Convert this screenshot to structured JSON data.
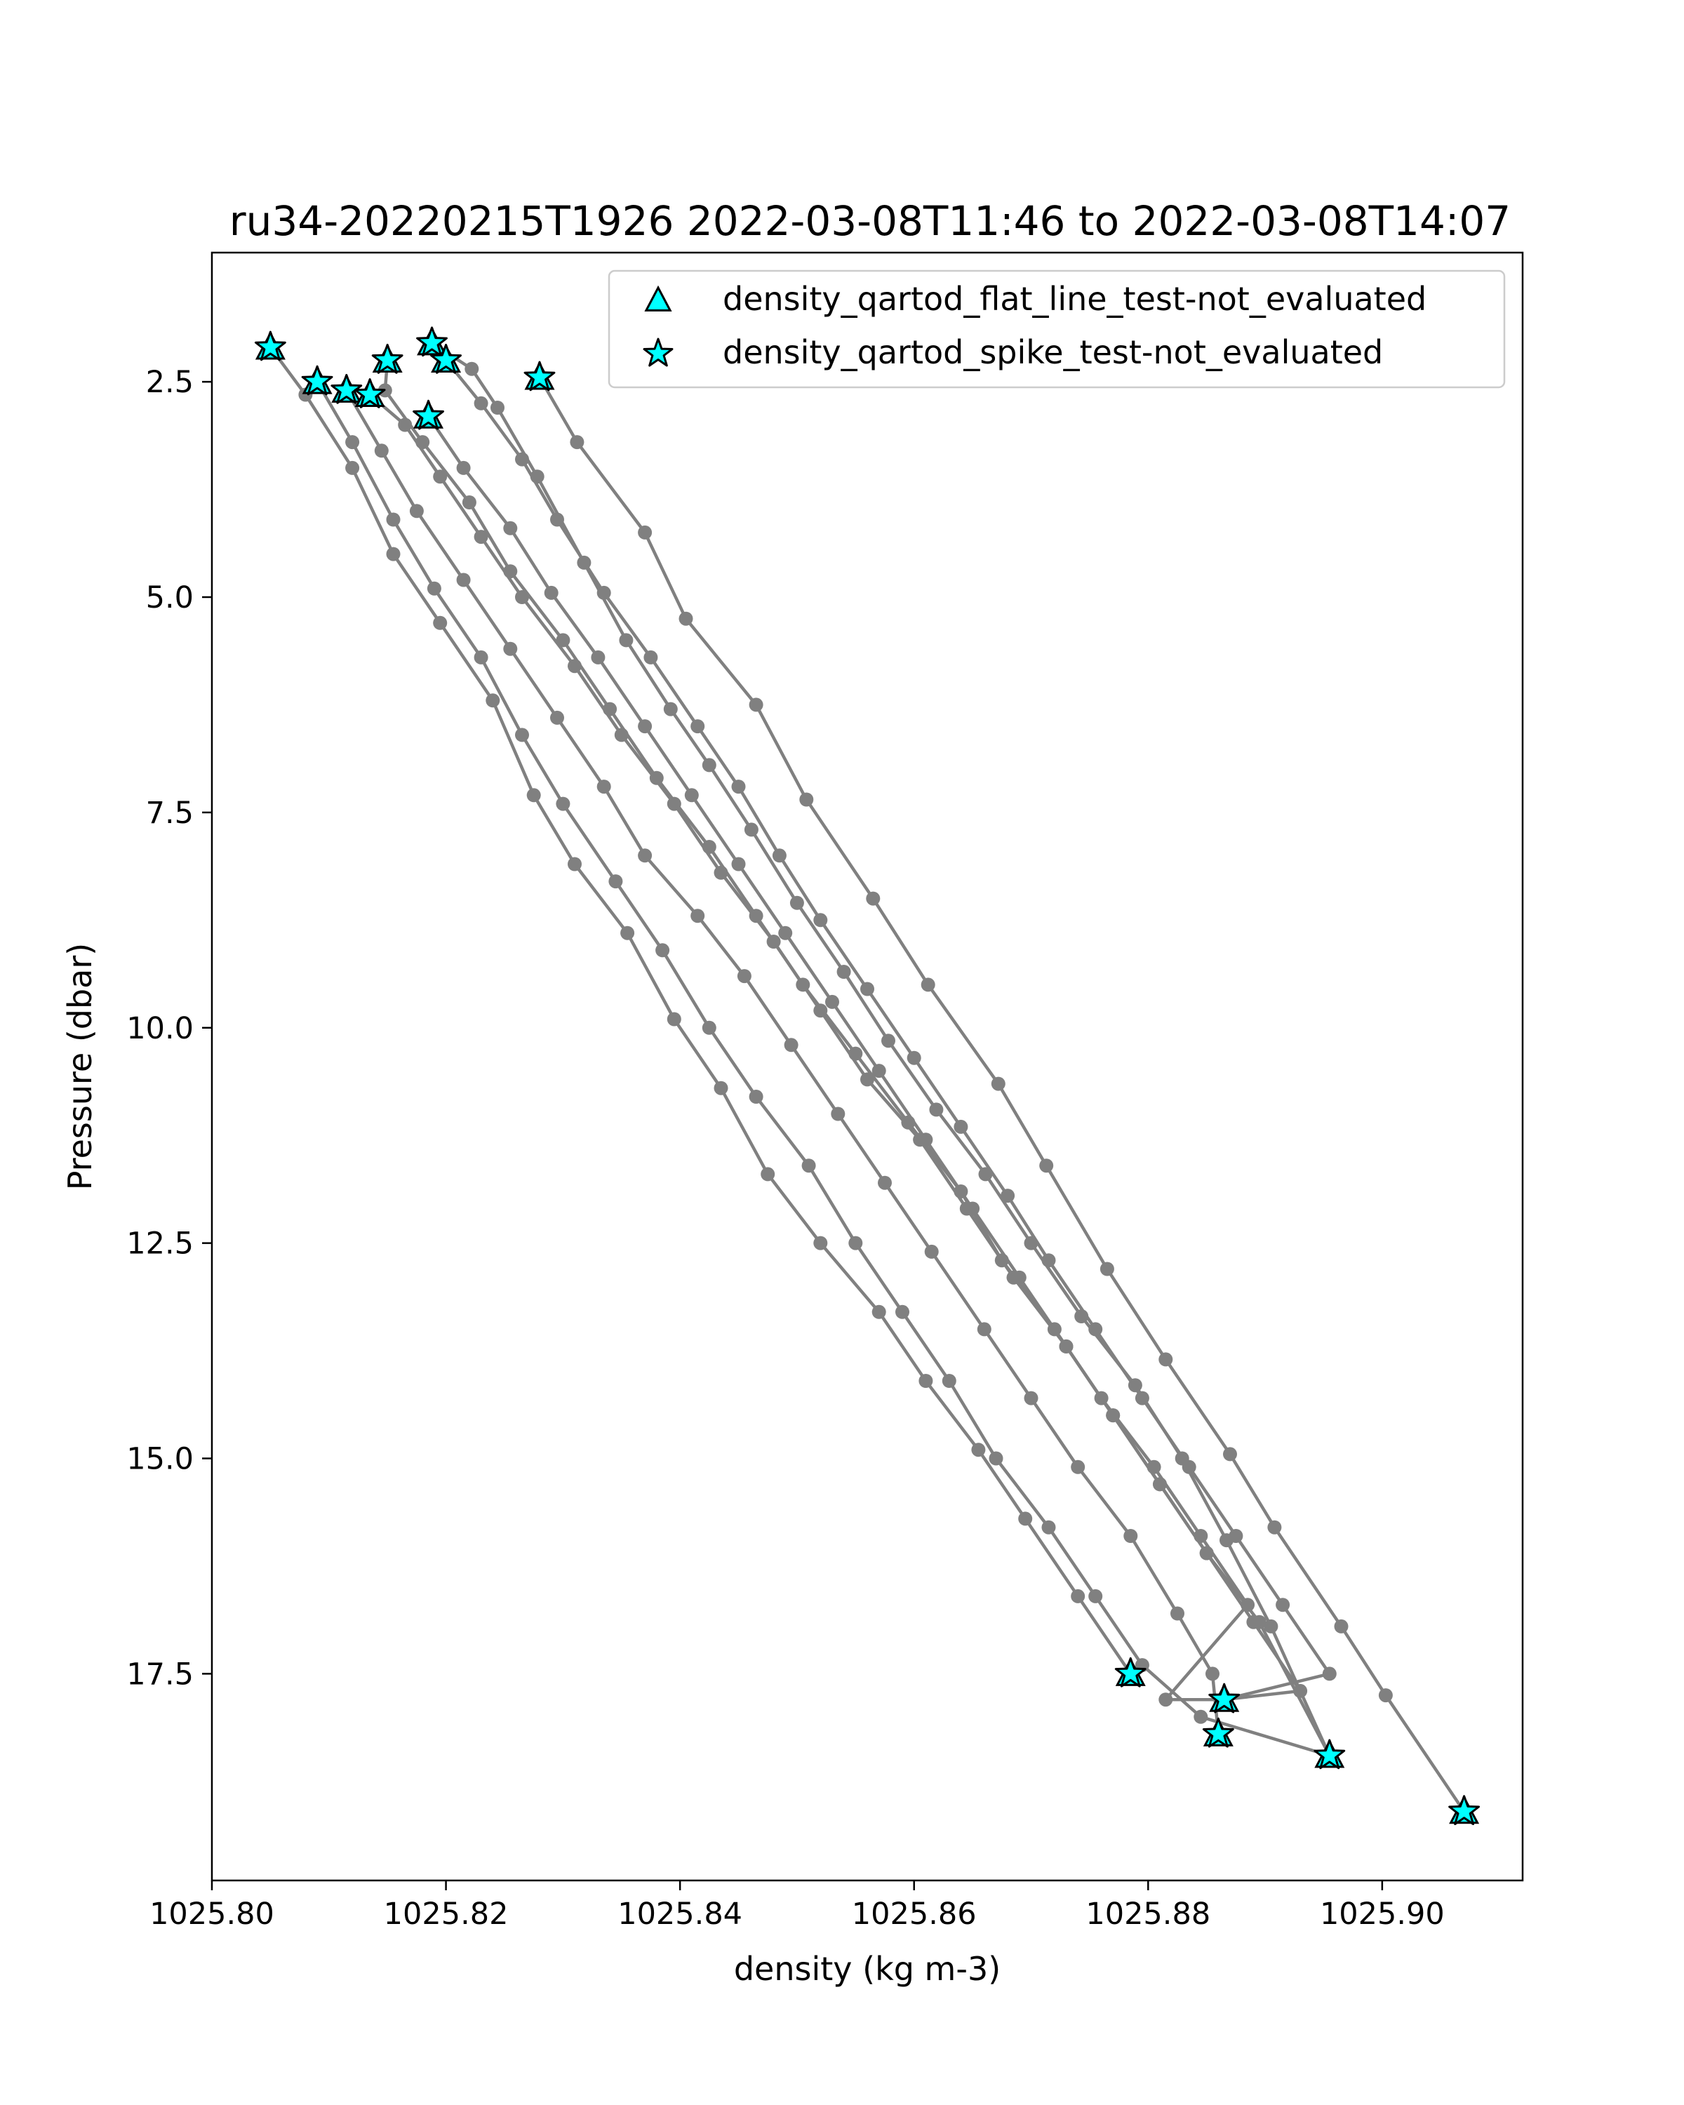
{
  "chart_data": {
    "type": "line",
    "title": "ru34-20220215T1926 2022-03-08T11:46 to 2022-03-08T14:07",
    "xlabel": "density (kg m-3)",
    "ylabel": "Pressure (dbar)",
    "xlim": [
      1025.8,
      1025.912
    ],
    "ylim": [
      19.9,
      1.0
    ],
    "y_inverted": true,
    "grid": false,
    "xticks": [
      {
        "value": 1025.8,
        "label": "1025.80"
      },
      {
        "value": 1025.82,
        "label": "1025.82"
      },
      {
        "value": 1025.84,
        "label": "1025.84"
      },
      {
        "value": 1025.86,
        "label": "1025.86"
      },
      {
        "value": 1025.88,
        "label": "1025.88"
      },
      {
        "value": 1025.9,
        "label": "1025.90"
      }
    ],
    "yticks": [
      {
        "value": 2.5,
        "label": "2.5"
      },
      {
        "value": 5.0,
        "label": "5.0"
      },
      {
        "value": 7.5,
        "label": "7.5"
      },
      {
        "value": 10.0,
        "label": "10.0"
      },
      {
        "value": 12.5,
        "label": "12.5"
      },
      {
        "value": 15.0,
        "label": "15.0"
      },
      {
        "value": 17.5,
        "label": "17.5"
      }
    ],
    "legend": {
      "placement": "top-right",
      "entries": [
        {
          "label": "density_qartod_flat_line_test-not_evaluated",
          "marker": "triangle",
          "color": "#00ffff"
        },
        {
          "label": "density_qartod_spike_test-not_evaluated",
          "marker": "star",
          "color": "#00ffff"
        }
      ]
    },
    "line_color": "#808080",
    "flag_color": "#00ffff",
    "series": [
      {
        "points": [
          [
            1025.805,
            2.1
          ],
          [
            1025.808,
            2.65
          ],
          [
            1025.812,
            3.5
          ],
          [
            1025.8155,
            4.5
          ],
          [
            1025.8195,
            5.3
          ],
          [
            1025.824,
            6.2
          ],
          [
            1025.8275,
            7.3
          ],
          [
            1025.831,
            8.1
          ],
          [
            1025.8355,
            8.9
          ],
          [
            1025.8395,
            9.9
          ],
          [
            1025.8435,
            10.7
          ],
          [
            1025.8475,
            11.7
          ],
          [
            1025.852,
            12.5
          ],
          [
            1025.857,
            13.3
          ],
          [
            1025.861,
            14.1
          ],
          [
            1025.8655,
            14.9
          ],
          [
            1025.8695,
            15.7
          ],
          [
            1025.874,
            16.6
          ],
          [
            1025.8785,
            17.5
          ]
        ]
      },
      {
        "points": [
          [
            1025.809,
            2.5
          ],
          [
            1025.812,
            3.2
          ],
          [
            1025.8155,
            4.1
          ],
          [
            1025.819,
            4.9
          ],
          [
            1025.823,
            5.7
          ],
          [
            1025.8265,
            6.6
          ],
          [
            1025.83,
            7.4
          ],
          [
            1025.8345,
            8.3
          ],
          [
            1025.8385,
            9.1
          ],
          [
            1025.8425,
            10.0
          ],
          [
            1025.8465,
            10.8
          ],
          [
            1025.851,
            11.6
          ],
          [
            1025.855,
            12.5
          ],
          [
            1025.859,
            13.3
          ],
          [
            1025.863,
            14.1
          ],
          [
            1025.867,
            15.0
          ],
          [
            1025.8715,
            15.8
          ],
          [
            1025.8755,
            16.6
          ],
          [
            1025.8795,
            17.4
          ],
          [
            1025.8845,
            18.0
          ],
          [
            1025.8955,
            18.45
          ]
        ]
      },
      {
        "points": [
          [
            1025.8115,
            2.6
          ],
          [
            1025.8145,
            3.3
          ],
          [
            1025.8175,
            4.0
          ],
          [
            1025.8215,
            4.8
          ],
          [
            1025.8255,
            5.6
          ],
          [
            1025.8295,
            6.4
          ],
          [
            1025.8335,
            7.2
          ],
          [
            1025.837,
            8.0
          ],
          [
            1025.8415,
            8.7
          ],
          [
            1025.8455,
            9.4
          ],
          [
            1025.8495,
            10.2
          ],
          [
            1025.8535,
            11.0
          ],
          [
            1025.8575,
            11.8
          ],
          [
            1025.8615,
            12.6
          ],
          [
            1025.866,
            13.5
          ],
          [
            1025.87,
            14.3
          ],
          [
            1025.874,
            15.1
          ],
          [
            1025.8785,
            15.9
          ],
          [
            1025.8825,
            16.8
          ],
          [
            1025.8855,
            17.5
          ],
          [
            1025.886,
            18.2
          ]
        ]
      },
      {
        "points": [
          [
            1025.8135,
            2.65
          ],
          [
            1025.8165,
            3.0
          ],
          [
            1025.8195,
            3.6
          ],
          [
            1025.823,
            4.3
          ],
          [
            1025.8265,
            5.0
          ],
          [
            1025.831,
            5.8
          ],
          [
            1025.835,
            6.6
          ],
          [
            1025.8395,
            7.4
          ],
          [
            1025.8435,
            8.2
          ],
          [
            1025.848,
            9.0
          ],
          [
            1025.852,
            9.8
          ],
          [
            1025.856,
            10.6
          ],
          [
            1025.8605,
            11.3
          ],
          [
            1025.8645,
            12.1
          ],
          [
            1025.8685,
            12.9
          ],
          [
            1025.873,
            13.7
          ],
          [
            1025.877,
            14.5
          ],
          [
            1025.881,
            15.3
          ],
          [
            1025.885,
            16.1
          ],
          [
            1025.8895,
            16.9
          ],
          [
            1025.8955,
            18.45
          ]
        ]
      },
      {
        "points": [
          [
            1025.815,
            2.25
          ],
          [
            1025.8148,
            2.6
          ],
          [
            1025.818,
            3.2
          ],
          [
            1025.822,
            3.9
          ],
          [
            1025.8255,
            4.7
          ],
          [
            1025.83,
            5.5
          ],
          [
            1025.834,
            6.3
          ],
          [
            1025.838,
            7.1
          ],
          [
            1025.8425,
            7.9
          ],
          [
            1025.8465,
            8.7
          ],
          [
            1025.8505,
            9.5
          ],
          [
            1025.855,
            10.3
          ],
          [
            1025.8595,
            11.1
          ],
          [
            1025.864,
            11.9
          ],
          [
            1025.8675,
            12.7
          ],
          [
            1025.872,
            13.5
          ],
          [
            1025.876,
            14.3
          ],
          [
            1025.8805,
            15.1
          ],
          [
            1025.8845,
            15.9
          ],
          [
            1025.8885,
            16.7
          ],
          [
            1025.8815,
            17.8
          ],
          [
            1025.8865,
            17.8
          ]
        ]
      },
      {
        "points": [
          [
            1025.8188,
            2.05
          ],
          [
            1025.8222,
            2.35
          ],
          [
            1025.8244,
            2.8
          ],
          [
            1025.8278,
            3.6
          ],
          [
            1025.8318,
            4.6
          ],
          [
            1025.8354,
            5.5
          ],
          [
            1025.8392,
            6.3
          ],
          [
            1025.8425,
            6.95
          ],
          [
            1025.8461,
            7.7
          ],
          [
            1025.85,
            8.55
          ],
          [
            1025.854,
            9.35
          ],
          [
            1025.8578,
            10.15
          ],
          [
            1025.8619,
            10.95
          ],
          [
            1025.8661,
            11.7
          ],
          [
            1025.87,
            12.5
          ],
          [
            1025.8743,
            13.35
          ],
          [
            1025.8789,
            14.15
          ],
          [
            1025.8829,
            15.0
          ],
          [
            1025.8867,
            15.95
          ],
          [
            1025.8905,
            16.95
          ],
          [
            1025.8955,
            18.45
          ]
        ]
      },
      {
        "points": [
          [
            1025.82,
            2.25
          ],
          [
            1025.823,
            2.75
          ],
          [
            1025.8265,
            3.4
          ],
          [
            1025.8295,
            4.1
          ],
          [
            1025.8335,
            4.95
          ],
          [
            1025.8375,
            5.7
          ],
          [
            1025.8415,
            6.5
          ],
          [
            1025.845,
            7.2
          ],
          [
            1025.8485,
            8.0
          ],
          [
            1025.852,
            8.75
          ],
          [
            1025.856,
            9.55
          ],
          [
            1025.86,
            10.35
          ],
          [
            1025.864,
            11.15
          ],
          [
            1025.868,
            11.95
          ],
          [
            1025.8715,
            12.7
          ],
          [
            1025.8755,
            13.5
          ],
          [
            1025.8795,
            14.3
          ],
          [
            1025.8835,
            15.1
          ],
          [
            1025.8875,
            15.9
          ],
          [
            1025.8915,
            16.7
          ],
          [
            1025.8955,
            17.5
          ],
          [
            1025.8865,
            17.8
          ]
        ]
      },
      {
        "points": [
          [
            1025.8185,
            2.9
          ],
          [
            1025.8215,
            3.5
          ],
          [
            1025.8255,
            4.2
          ],
          [
            1025.829,
            4.95
          ],
          [
            1025.833,
            5.7
          ],
          [
            1025.837,
            6.5
          ],
          [
            1025.841,
            7.3
          ],
          [
            1025.845,
            8.1
          ],
          [
            1025.849,
            8.9
          ],
          [
            1025.853,
            9.7
          ],
          [
            1025.857,
            10.5
          ],
          [
            1025.861,
            11.3
          ],
          [
            1025.865,
            12.1
          ],
          [
            1025.869,
            12.9
          ],
          [
            1025.873,
            13.7
          ],
          [
            1025.877,
            14.5
          ],
          [
            1025.881,
            15.3
          ],
          [
            1025.885,
            16.1
          ],
          [
            1025.889,
            16.9
          ],
          [
            1025.893,
            17.7
          ],
          [
            1025.8865,
            17.8
          ]
        ]
      },
      {
        "points": [
          [
            1025.828,
            2.45
          ],
          [
            1025.8312,
            3.2
          ],
          [
            1025.837,
            4.25
          ],
          [
            1025.8405,
            5.25
          ],
          [
            1025.8465,
            6.25
          ],
          [
            1025.8508,
            7.35
          ],
          [
            1025.8565,
            8.5
          ],
          [
            1025.8612,
            9.5
          ],
          [
            1025.8672,
            10.65
          ],
          [
            1025.8713,
            11.6
          ],
          [
            1025.8765,
            12.8
          ],
          [
            1025.8815,
            13.85
          ],
          [
            1025.887,
            14.95
          ],
          [
            1025.8908,
            15.8
          ],
          [
            1025.8965,
            16.95
          ],
          [
            1025.9003,
            17.75
          ],
          [
            1025.907,
            19.1
          ]
        ]
      }
    ],
    "flagged_points": [
      {
        "x": 1025.805,
        "y": 2.1,
        "flags": [
          "flat_line",
          "spike"
        ]
      },
      {
        "x": 1025.809,
        "y": 2.5,
        "flags": [
          "flat_line",
          "spike"
        ]
      },
      {
        "x": 1025.8115,
        "y": 2.6,
        "flags": [
          "flat_line",
          "spike"
        ]
      },
      {
        "x": 1025.8135,
        "y": 2.65,
        "flags": [
          "flat_line",
          "spike"
        ]
      },
      {
        "x": 1025.815,
        "y": 2.25,
        "flags": [
          "flat_line",
          "spike"
        ]
      },
      {
        "x": 1025.8188,
        "y": 2.05,
        "flags": [
          "flat_line",
          "spike"
        ]
      },
      {
        "x": 1025.82,
        "y": 2.25,
        "flags": [
          "flat_line",
          "spike"
        ]
      },
      {
        "x": 1025.8185,
        "y": 2.9,
        "flags": [
          "flat_line",
          "spike"
        ]
      },
      {
        "x": 1025.828,
        "y": 2.45,
        "flags": [
          "flat_line",
          "spike"
        ]
      },
      {
        "x": 1025.8785,
        "y": 17.5,
        "flags": [
          "flat_line",
          "spike"
        ]
      },
      {
        "x": 1025.8865,
        "y": 17.8,
        "flags": [
          "flat_line",
          "spike"
        ]
      },
      {
        "x": 1025.886,
        "y": 18.2,
        "flags": [
          "flat_line",
          "spike"
        ]
      },
      {
        "x": 1025.8955,
        "y": 18.45,
        "flags": [
          "flat_line",
          "spike"
        ]
      },
      {
        "x": 1025.907,
        "y": 19.1,
        "flags": [
          "flat_line",
          "spike"
        ]
      }
    ]
  }
}
